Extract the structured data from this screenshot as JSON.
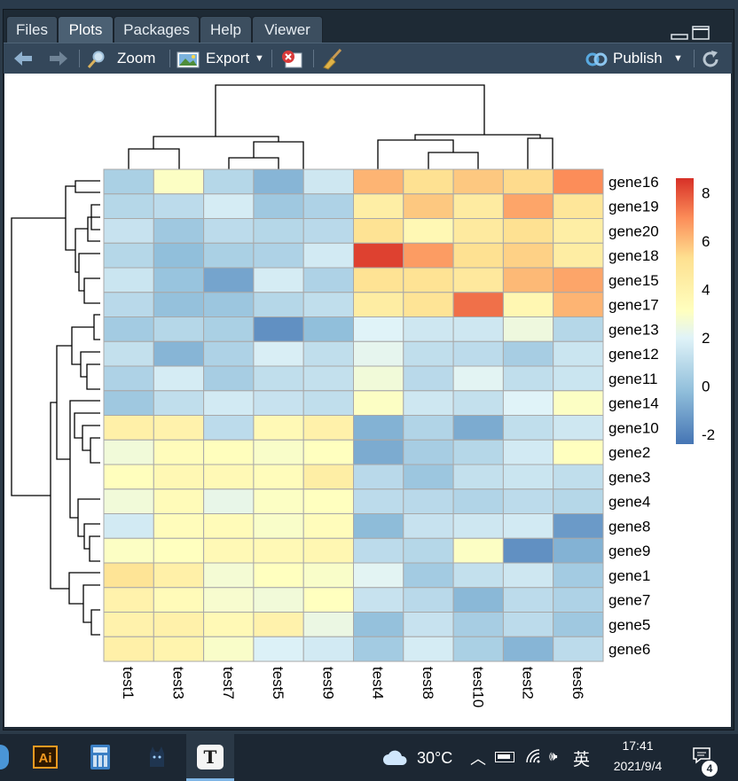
{
  "tabs": [
    {
      "label": "Files",
      "active": false
    },
    {
      "label": "Plots",
      "active": true
    },
    {
      "label": "Packages",
      "active": false
    },
    {
      "label": "Help",
      "active": false
    },
    {
      "label": "Viewer",
      "active": false
    }
  ],
  "toolbar": {
    "zoom_label": "Zoom",
    "export_label": "Export",
    "publish_label": "Publish"
  },
  "chart_data": {
    "type": "heatmap",
    "columns": [
      "test1",
      "test3",
      "test7",
      "test5",
      "test9",
      "test4",
      "test8",
      "test10",
      "test2",
      "test6"
    ],
    "rows": [
      "gene16",
      "gene19",
      "gene20",
      "gene18",
      "gene15",
      "gene17",
      "gene13",
      "gene12",
      "gene11",
      "gene14",
      "gene10",
      "gene2",
      "gene3",
      "gene4",
      "gene8",
      "gene9",
      "gene1",
      "gene7",
      "gene5",
      "gene6"
    ],
    "values": [
      [
        0.5,
        3.0,
        0.8,
        -0.5,
        1.5,
        6.2,
        5.2,
        5.8,
        5.4,
        7.0
      ],
      [
        0.8,
        1.0,
        1.7,
        0.2,
        0.6,
        4.3,
        5.8,
        4.5,
        6.5,
        4.9
      ],
      [
        1.3,
        0.2,
        1.0,
        0.8,
        0.9,
        5.1,
        3.6,
        4.6,
        5.2,
        4.3
      ],
      [
        0.8,
        -0.2,
        0.5,
        0.6,
        1.6,
        8.3,
        6.7,
        5.2,
        5.6,
        4.4
      ],
      [
        1.4,
        0.0,
        -1.0,
        1.7,
        0.6,
        5.1,
        5.1,
        4.7,
        6.1,
        6.5
      ],
      [
        0.9,
        -0.1,
        0.1,
        0.8,
        1.1,
        4.4,
        5.0,
        7.5,
        3.7,
        6.2
      ],
      [
        0.3,
        0.8,
        0.5,
        -1.6,
        -0.2,
        2.0,
        1.5,
        1.5,
        2.5,
        0.8
      ],
      [
        1.2,
        -0.5,
        0.6,
        1.8,
        1.1,
        2.2,
        1.1,
        1.0,
        0.4,
        1.4
      ],
      [
        0.6,
        1.7,
        0.4,
        1.1,
        1.2,
        2.6,
        0.9,
        2.1,
        1.1,
        1.4
      ],
      [
        0.2,
        1.1,
        1.6,
        1.3,
        1.1,
        3.0,
        1.5,
        1.2,
        2.0,
        3.0
      ],
      [
        4.2,
        4.0,
        1.0,
        3.5,
        4.1,
        -0.6,
        0.7,
        -0.8,
        1.1,
        1.5
      ],
      [
        2.6,
        3.3,
        3.2,
        2.9,
        3.1,
        -0.8,
        0.4,
        0.8,
        1.6,
        3.1
      ],
      [
        3.2,
        3.6,
        3.5,
        3.3,
        4.3,
        0.9,
        0.1,
        1.2,
        1.4,
        1.1
      ],
      [
        2.6,
        3.4,
        2.3,
        3.0,
        3.1,
        1.0,
        0.9,
        0.7,
        1.0,
        0.8
      ],
      [
        1.6,
        3.3,
        3.4,
        2.9,
        3.3,
        -0.3,
        1.3,
        1.5,
        1.6,
        -1.3
      ],
      [
        3.0,
        3.1,
        3.5,
        3.5,
        3.7,
        1.0,
        0.8,
        3.0,
        -1.6,
        -0.6
      ],
      [
        5.0,
        4.2,
        2.7,
        3.1,
        2.9,
        2.1,
        0.3,
        1.2,
        1.5,
        0.3
      ],
      [
        4.0,
        3.4,
        2.8,
        2.6,
        3.1,
        1.3,
        0.9,
        -0.4,
        1.0,
        0.6
      ],
      [
        4.0,
        4.1,
        3.5,
        4.0,
        2.4,
        -0.1,
        1.3,
        0.4,
        1.0,
        0.2
      ],
      [
        4.2,
        3.9,
        2.9,
        1.9,
        1.6,
        0.3,
        1.7,
        0.5,
        -0.5,
        1.0
      ]
    ],
    "colorbar_ticks": [
      8,
      6,
      4,
      2,
      0,
      -2
    ],
    "colorbar_range": [
      -2.4,
      8.6
    ]
  },
  "taskbar": {
    "weather": "30°C",
    "ime": "英",
    "time": "17:41",
    "date": "2021/9/4",
    "notification_count": "4"
  }
}
